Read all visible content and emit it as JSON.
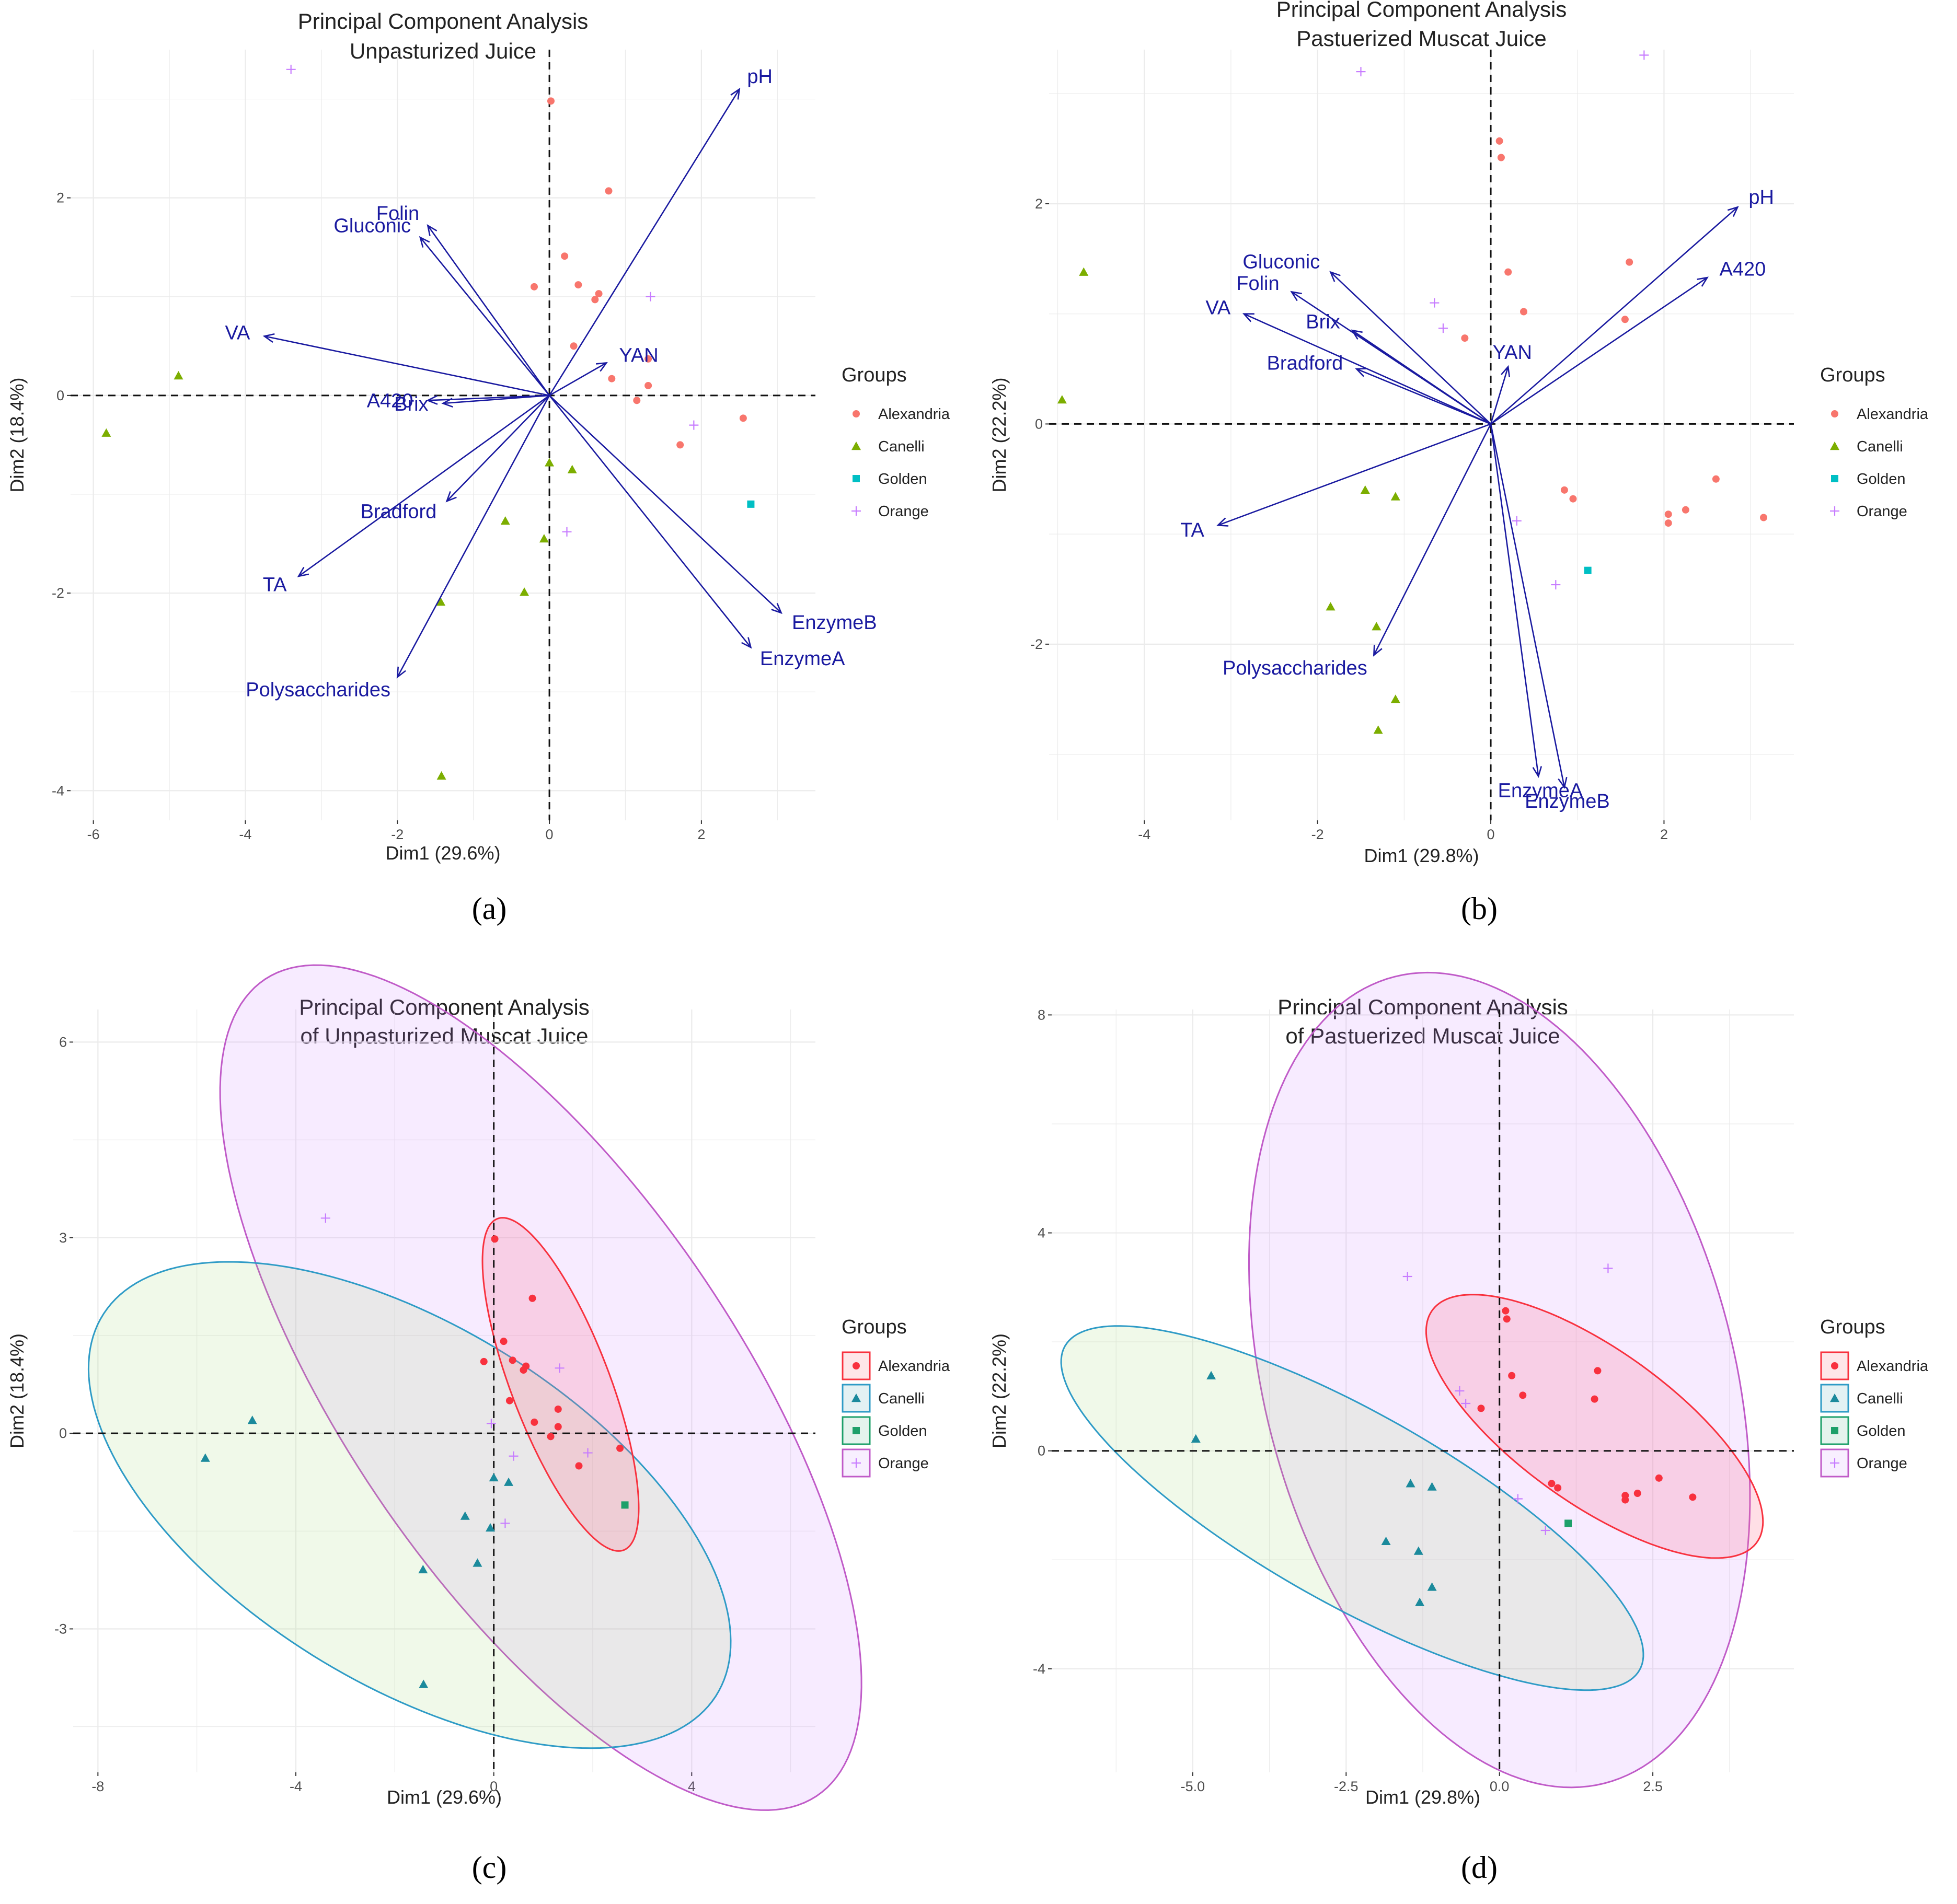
{
  "colors": {
    "Alexandria": "#F8766D",
    "Canelli": "#7CAE00",
    "Golden": "#00BFC4",
    "Orange": "#C77CFF",
    "vector": "#1a1aa0",
    "ellipse_Alexandria": "#F8313E",
    "ellipse_Canelli": "#2E9BC6",
    "ellipse_Golden": "#1EA06A",
    "ellipse_Orange": "#C05BC8",
    "teal_Canelli": "#1B8A9C",
    "green_Golden": "#1EA06A",
    "grid": "#ebebeb"
  },
  "legend": {
    "title": "Groups",
    "items": [
      "Alexandria",
      "Canelli",
      "Golden",
      "Orange"
    ]
  },
  "chart_data": [
    {
      "type": "scatter",
      "caption": "(a)",
      "title": "Principal Component Analysis",
      "subtitle": "Unpasturized Juice",
      "xlabel": "Dim1 (29.6%)",
      "ylabel": "Dim2 (18.4%)",
      "xlim": [
        -6.3,
        3.5
      ],
      "ylim": [
        -4.3,
        3.5
      ],
      "xticks": [
        -6,
        -4,
        -2,
        0,
        2
      ],
      "yticks": [
        -4,
        -2,
        0,
        2
      ],
      "xtick_labels": [
        "-6",
        "-4",
        "-2",
        "0",
        "2"
      ],
      "ytick_labels": [
        "-4",
        "-2",
        "0",
        "2"
      ],
      "ellipses": false,
      "points": {
        "Alexandria": [
          [
            0.02,
            2.98
          ],
          [
            0.78,
            2.07
          ],
          [
            0.2,
            1.41
          ],
          [
            0.38,
            1.12
          ],
          [
            0.65,
            1.03
          ],
          [
            0.6,
            0.97
          ],
          [
            -0.2,
            1.1
          ],
          [
            0.32,
            0.5
          ],
          [
            1.3,
            0.37
          ],
          [
            0.82,
            0.17
          ],
          [
            1.3,
            0.1
          ],
          [
            1.15,
            -0.05
          ],
          [
            1.72,
            -0.5
          ],
          [
            2.55,
            -0.23
          ]
        ],
        "Canelli": [
          [
            -4.88,
            0.2
          ],
          [
            -5.83,
            -0.38
          ],
          [
            0.0,
            -0.68
          ],
          [
            0.3,
            -0.75
          ],
          [
            -0.58,
            -1.27
          ],
          [
            -0.07,
            -1.45
          ],
          [
            -1.43,
            -2.09
          ],
          [
            -0.33,
            -1.99
          ],
          [
            -1.42,
            -3.85
          ]
        ],
        "Golden": [
          [
            2.65,
            -1.1
          ]
        ],
        "Orange": [
          [
            -3.4,
            3.3
          ],
          [
            1.33,
            1.0
          ],
          [
            1.9,
            -0.3
          ],
          [
            0.23,
            -1.38
          ]
        ]
      },
      "vectors": [
        {
          "name": "pH",
          "x": 2.5,
          "y": 3.1
        },
        {
          "name": "Folin",
          "x": -1.6,
          "y": 1.72
        },
        {
          "name": "Gluconic",
          "x": -1.7,
          "y": 1.6
        },
        {
          "name": "VA",
          "x": -3.75,
          "y": 0.6
        },
        {
          "name": "A420",
          "x": -1.6,
          "y": -0.05
        },
        {
          "name": "Brix",
          "x": -1.4,
          "y": -0.08
        },
        {
          "name": "YAN",
          "x": 0.75,
          "y": 0.33
        },
        {
          "name": "Bradford",
          "x": -1.35,
          "y": -1.07
        },
        {
          "name": "TA",
          "x": -3.3,
          "y": -1.83
        },
        {
          "name": "Polysaccharides",
          "x": -2.0,
          "y": -2.85
        },
        {
          "name": "EnzymeB",
          "x": 3.05,
          "y": -2.2
        },
        {
          "name": "EnzymeA",
          "x": 2.65,
          "y": -2.55
        }
      ]
    },
    {
      "type": "scatter",
      "caption": "(b)",
      "title": "Principal Component Analysis",
      "subtitle": "Pastuerized Muscat Juice",
      "xlabel": "Dim1 (29.8%)",
      "ylabel": "Dim2 (22.2%)",
      "xlim": [
        -5.1,
        3.5
      ],
      "ylim": [
        -3.6,
        3.4
      ],
      "xticks": [
        -4,
        -2,
        0,
        2
      ],
      "yticks": [
        -2,
        0,
        2
      ],
      "xtick_labels": [
        "-4",
        "-2",
        "0",
        "2"
      ],
      "ytick_labels": [
        "-2",
        "0",
        "2"
      ],
      "ellipses": false,
      "points": {
        "Alexandria": [
          [
            0.1,
            2.57
          ],
          [
            0.12,
            2.42
          ],
          [
            0.2,
            1.38
          ],
          [
            1.6,
            1.47
          ],
          [
            0.38,
            1.02
          ],
          [
            1.55,
            0.95
          ],
          [
            -0.3,
            0.78
          ],
          [
            0.85,
            -0.6
          ],
          [
            0.95,
            -0.68
          ],
          [
            2.6,
            -0.5
          ],
          [
            2.25,
            -0.78
          ],
          [
            2.05,
            -0.82
          ],
          [
            2.05,
            -0.9
          ],
          [
            3.15,
            -0.85
          ]
        ],
        "Canelli": [
          [
            -4.7,
            1.38
          ],
          [
            -4.95,
            0.22
          ],
          [
            -1.45,
            -0.6
          ],
          [
            -1.1,
            -0.66
          ],
          [
            -1.85,
            -1.66
          ],
          [
            -1.32,
            -1.84
          ],
          [
            -1.1,
            -2.5
          ],
          [
            -1.3,
            -2.78
          ]
        ],
        "Golden": [
          [
            1.12,
            -1.33
          ]
        ],
        "Orange": [
          [
            -1.5,
            3.2
          ],
          [
            1.77,
            3.35
          ],
          [
            -0.65,
            1.1
          ],
          [
            -0.55,
            0.87
          ],
          [
            0.3,
            -0.88
          ],
          [
            0.75,
            -1.46
          ]
        ]
      },
      "vectors": [
        {
          "name": "pH",
          "x": 2.85,
          "y": 1.97
        },
        {
          "name": "A420",
          "x": 2.5,
          "y": 1.33
        },
        {
          "name": "Gluconic",
          "x": -1.85,
          "y": 1.38
        },
        {
          "name": "Folin",
          "x": -2.3,
          "y": 1.2
        },
        {
          "name": "VA",
          "x": -2.85,
          "y": 1.0
        },
        {
          "name": "Brix",
          "x": -1.6,
          "y": 0.85
        },
        {
          "name": "Bradford",
          "x": -1.55,
          "y": 0.5
        },
        {
          "name": "YAN",
          "x": 0.2,
          "y": 0.52
        },
        {
          "name": "TA",
          "x": -3.15,
          "y": -0.92
        },
        {
          "name": "Polysaccharides",
          "x": -1.35,
          "y": -2.1
        },
        {
          "name": "EnzymeA",
          "x": 0.55,
          "y": -3.2
        },
        {
          "name": "EnzymeB",
          "x": 0.85,
          "y": -3.3
        }
      ]
    },
    {
      "type": "scatter",
      "caption": "(c)",
      "title": "Principal Component Analysis",
      "subtitle": "of Unpasturized Muscat Juice",
      "xlabel": "Dim1 (29.6%)",
      "ylabel": "Dim2 (18.4%)",
      "xlim": [
        -8.5,
        6.5
      ],
      "ylim": [
        -5.2,
        6.5
      ],
      "xticks": [
        -8,
        -4,
        0,
        4
      ],
      "yticks": [
        -3,
        0,
        3,
        6
      ],
      "xtick_labels": [
        "-8",
        "-4",
        "0",
        "4"
      ],
      "ytick_labels": [
        "-3",
        "0",
        "3",
        "6"
      ],
      "ellipses": true,
      "ellipse_params": {
        "Alexandria": {
          "cx": 1.35,
          "cy": 0.75,
          "rx": 2.85,
          "ry": 0.95,
          "angle": -62
        },
        "Canelli": {
          "cx": -1.7,
          "cy": -1.1,
          "rx": 6.9,
          "ry": 2.9,
          "angle": -22
        },
        "Orange": {
          "cx": 0.95,
          "cy": 0.7,
          "rx": 8.45,
          "ry": 3.55,
          "angle": -45
        }
      },
      "points": {
        "Alexandria": [
          [
            0.02,
            2.98
          ],
          [
            0.78,
            2.07
          ],
          [
            0.2,
            1.41
          ],
          [
            0.38,
            1.12
          ],
          [
            0.65,
            1.03
          ],
          [
            0.6,
            0.97
          ],
          [
            -0.2,
            1.1
          ],
          [
            0.32,
            0.5
          ],
          [
            1.3,
            0.37
          ],
          [
            0.82,
            0.17
          ],
          [
            1.3,
            0.1
          ],
          [
            1.15,
            -0.05
          ],
          [
            1.72,
            -0.5
          ],
          [
            2.55,
            -0.23
          ]
        ],
        "Canelli": [
          [
            -4.88,
            0.2
          ],
          [
            -5.83,
            -0.38
          ],
          [
            0.0,
            -0.68
          ],
          [
            0.3,
            -0.75
          ],
          [
            -0.58,
            -1.27
          ],
          [
            -0.07,
            -1.45
          ],
          [
            -1.43,
            -2.09
          ],
          [
            -0.33,
            -1.99
          ],
          [
            -1.42,
            -3.85
          ]
        ],
        "Golden": [
          [
            2.65,
            -1.1
          ]
        ],
        "Orange": [
          [
            -3.4,
            3.3
          ],
          [
            1.33,
            1.0
          ],
          [
            1.9,
            -0.3
          ],
          [
            0.23,
            -1.38
          ],
          [
            0.4,
            -0.35
          ],
          [
            -0.05,
            0.15
          ]
        ]
      }
    },
    {
      "type": "scatter",
      "caption": "(d)",
      "title": "Principal Component Analysis",
      "subtitle": "of Pastuerized Muscat Juice",
      "xlabel": "Dim1 (29.8%)",
      "ylabel": "Dim2 (22.2%)",
      "xlim": [
        -7.3,
        4.8
      ],
      "ylim": [
        -5.9,
        8.1
      ],
      "xticks": [
        -5.0,
        -2.5,
        0.0,
        2.5
      ],
      "yticks": [
        -4,
        0,
        4,
        8
      ],
      "xtick_labels": [
        "-5.0",
        "-2.5",
        "0.0",
        "2.5"
      ],
      "ytick_labels": [
        "-4",
        "0",
        "4",
        "8"
      ],
      "ellipses": true,
      "ellipse_params": {
        "Alexandria": {
          "cx": 1.55,
          "cy": 0.45,
          "rx": 3.4,
          "ry": 1.35,
          "angle": -40
        },
        "Canelli": {
          "cx": -2.4,
          "cy": -1.05,
          "rx": 5.55,
          "ry": 1.7,
          "angle": -33
        },
        "Orange": {
          "cx": 0.0,
          "cy": 1.3,
          "rx": 7.6,
          "ry": 3.85,
          "angle": -78
        }
      },
      "points": {
        "Alexandria": [
          [
            0.1,
            2.57
          ],
          [
            0.12,
            2.42
          ],
          [
            0.2,
            1.38
          ],
          [
            1.6,
            1.47
          ],
          [
            0.38,
            1.02
          ],
          [
            1.55,
            0.95
          ],
          [
            -0.3,
            0.78
          ],
          [
            0.85,
            -0.6
          ],
          [
            0.95,
            -0.68
          ],
          [
            2.6,
            -0.5
          ],
          [
            2.25,
            -0.78
          ],
          [
            2.05,
            -0.82
          ],
          [
            2.05,
            -0.9
          ],
          [
            3.15,
            -0.85
          ]
        ],
        "Canelli": [
          [
            -4.7,
            1.38
          ],
          [
            -4.95,
            0.22
          ],
          [
            -1.45,
            -0.6
          ],
          [
            -1.1,
            -0.66
          ],
          [
            -1.85,
            -1.66
          ],
          [
            -1.32,
            -1.84
          ],
          [
            -1.1,
            -2.5
          ],
          [
            -1.3,
            -2.78
          ]
        ],
        "Golden": [
          [
            1.12,
            -1.33
          ]
        ],
        "Orange": [
          [
            -1.5,
            3.2
          ],
          [
            1.77,
            3.35
          ],
          [
            -0.65,
            1.1
          ],
          [
            -0.55,
            0.87
          ],
          [
            0.3,
            -0.88
          ],
          [
            0.75,
            -1.46
          ]
        ]
      }
    }
  ]
}
